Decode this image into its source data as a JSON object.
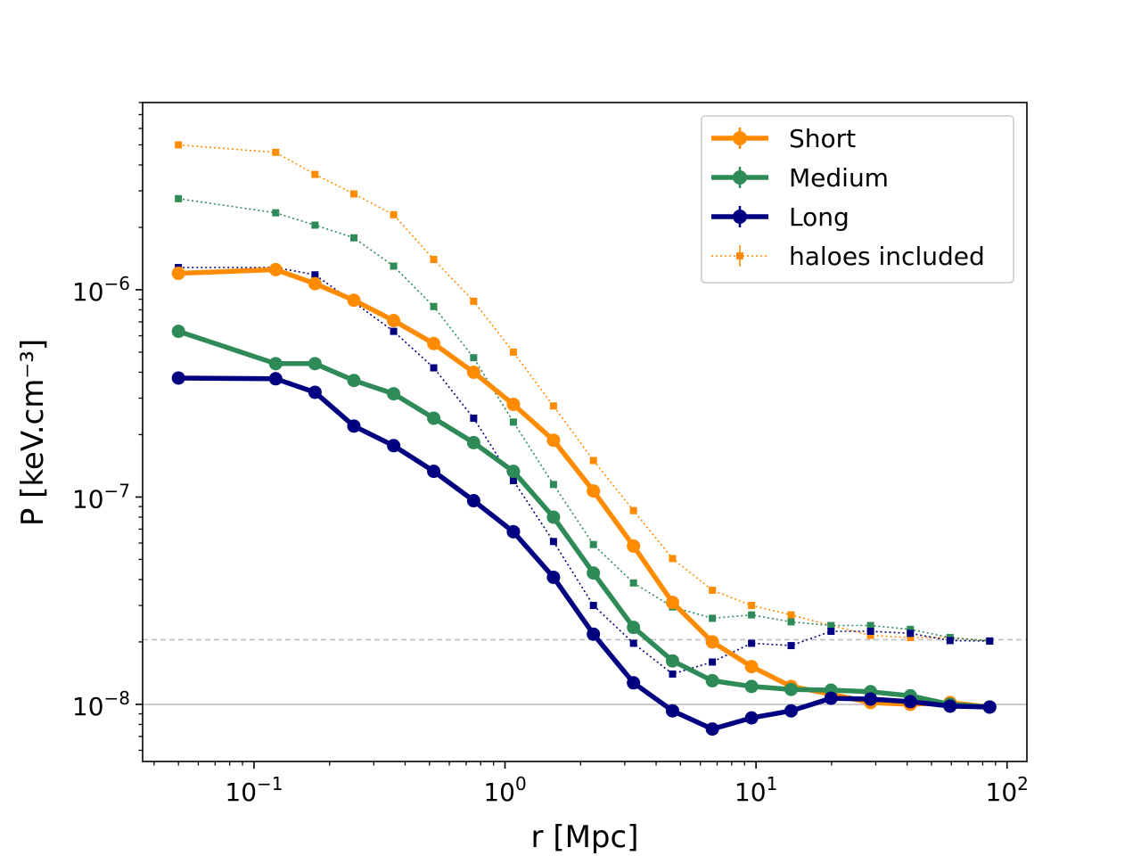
{
  "chart_data": {
    "type": "line",
    "xscale": "log",
    "yscale": "log",
    "xlabel": "r [Mpc]",
    "ylabel": "P [keV.cm⁻³]",
    "xlim": [
      0.036,
      120
    ],
    "ylim": [
      5.3e-09,
      8e-06
    ],
    "x_major_ticks": [
      {
        "value": 0.1,
        "base": "10",
        "exp": "−1"
      },
      {
        "value": 1,
        "base": "10",
        "exp": "0"
      },
      {
        "value": 10,
        "base": "10",
        "exp": "1"
      },
      {
        "value": 100,
        "base": "10",
        "exp": "2"
      }
    ],
    "y_major_ticks": [
      {
        "value": 1e-08,
        "base": "10",
        "exp": "−8"
      },
      {
        "value": 1e-07,
        "base": "10",
        "exp": "−7"
      },
      {
        "value": 1e-06,
        "base": "10",
        "exp": "−6"
      }
    ],
    "reference_lines": [
      {
        "value": 1e-08,
        "style": "solid",
        "color": "#c0c0c0"
      },
      {
        "value": 2.05e-08,
        "style": "dashed",
        "color": "#c0c0c0"
      }
    ],
    "x": [
      0.05,
      0.122,
      0.175,
      0.25,
      0.36,
      0.52,
      0.75,
      1.08,
      1.56,
      2.25,
      3.25,
      4.65,
      6.7,
      9.6,
      13.8,
      19.9,
      28.6,
      41.2,
      59.3,
      85.3
    ],
    "series": [
      {
        "name": "Short",
        "color": "#ff8c00",
        "style": "thick",
        "values": [
          1.2e-06,
          1.25e-06,
          1.07e-06,
          8.9e-07,
          7.1e-07,
          5.5e-07,
          4e-07,
          2.8e-07,
          1.88e-07,
          1.07e-07,
          5.8e-08,
          3.1e-08,
          2e-08,
          1.52e-08,
          1.22e-08,
          1.12e-08,
          1.02e-08,
          1e-08,
          1.02e-08,
          9.7e-09
        ]
      },
      {
        "name": "Medium",
        "color": "#2e8b57",
        "style": "thick",
        "values": [
          6.3e-07,
          4.4e-07,
          4.4e-07,
          3.65e-07,
          3.15e-07,
          2.4e-07,
          1.83e-07,
          1.33e-07,
          8e-08,
          4.3e-08,
          2.35e-08,
          1.62e-08,
          1.3e-08,
          1.22e-08,
          1.18e-08,
          1.17e-08,
          1.15e-08,
          1.1e-08,
          1e-08,
          9.7e-09
        ]
      },
      {
        "name": "Long",
        "color": "#000080",
        "style": "thick",
        "values": [
          3.75e-07,
          3.72e-07,
          3.2e-07,
          2.2e-07,
          1.77e-07,
          1.33e-07,
          9.6e-08,
          6.8e-08,
          4.1e-08,
          2.18e-08,
          1.27e-08,
          9.3e-09,
          7.6e-09,
          8.6e-09,
          9.3e-09,
          1.07e-08,
          1.06e-08,
          1.03e-08,
          9.8e-09,
          9.7e-09
        ]
      },
      {
        "name": "Short (haloes included)",
        "color": "#ff8c00",
        "style": "dotted",
        "values": [
          5e-06,
          4.6e-06,
          3.6e-06,
          2.9e-06,
          2.3e-06,
          1.4e-06,
          8.8e-07,
          5e-07,
          2.75e-07,
          1.5e-07,
          8.6e-08,
          5.05e-08,
          3.55e-08,
          3e-08,
          2.7e-08,
          2.4e-08,
          2.15e-08,
          2.1e-08,
          2.1e-08,
          2.02e-08
        ]
      },
      {
        "name": "Medium (haloes included)",
        "color": "#2e8b57",
        "style": "dotted",
        "values": [
          2.75e-06,
          2.35e-06,
          2.05e-06,
          1.78e-06,
          1.3e-06,
          8.3e-07,
          4.7e-07,
          2.3e-07,
          1.15e-07,
          5.9e-08,
          3.85e-08,
          2.95e-08,
          2.6e-08,
          2.7e-08,
          2.5e-08,
          2.4e-08,
          2.4e-08,
          2.3e-08,
          2.1e-08,
          2.02e-08
        ]
      },
      {
        "name": "Long (haloes included)",
        "color": "#000080",
        "style": "dotted",
        "values": [
          1.28e-06,
          1.28e-06,
          1.18e-06,
          8.7e-07,
          6.3e-07,
          4.2e-07,
          2.4e-07,
          1.2e-07,
          6.1e-08,
          3e-08,
          1.97e-08,
          1.4e-08,
          1.6e-08,
          1.97e-08,
          1.92e-08,
          2.25e-08,
          2.25e-08,
          2.2e-08,
          2.03e-08,
          2.02e-08
        ]
      }
    ],
    "legend": {
      "position": "top-right",
      "entries": [
        {
          "label": "Short",
          "color": "#ff8c00",
          "style": "thick"
        },
        {
          "label": "Medium",
          "color": "#2e8b57",
          "style": "thick"
        },
        {
          "label": "Long",
          "color": "#000080",
          "style": "thick"
        },
        {
          "label": "haloes included",
          "color": "#ff8c00",
          "style": "dotted"
        }
      ]
    }
  }
}
